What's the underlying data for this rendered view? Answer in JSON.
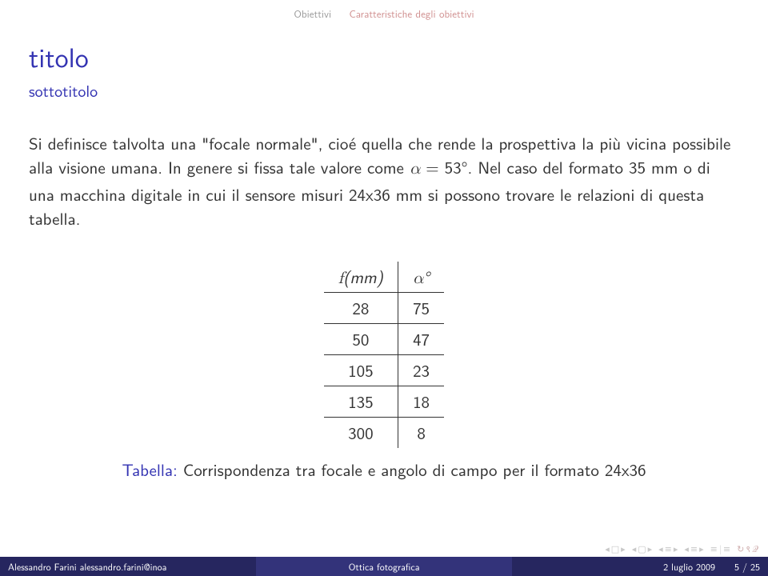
{
  "header": {
    "tab_active": "Obiettivi",
    "tab_inactive": "Caratteristiche degli obiettivi"
  },
  "title": "titolo",
  "subtitle": "sottotitolo",
  "body": "Si definisce talvolta una \"focale normale\", cioè quella che rende la prospettiva la più vicina possibile alla visione umana. In genere si fissa tale valore come α = 53°. Nel caso del formato 35 mm o di una macchina digitale in cui il sensore misuri 24x36 mm si possono trovare le relazioni di questa tabella.",
  "table": {
    "col1_header": "f(mm)",
    "col2_header": "α°",
    "rows": [
      {
        "f": "28",
        "a": "75"
      },
      {
        "f": "50",
        "a": "47"
      },
      {
        "f": "105",
        "a": "23"
      },
      {
        "f": "135",
        "a": "18"
      },
      {
        "f": "300",
        "a": "8"
      }
    ],
    "caption_label": "Tabella:",
    "caption_text": "Corrispondenza tra focale e angolo di campo per il formato 24x36"
  },
  "footer": {
    "author": "Alessandro Farini   alessandro.farini@inoa",
    "center": "Ottica fotografica",
    "date": "2 luglio 2009",
    "page": "5 / 25"
  },
  "colors": {
    "title_blue": "#3333B2",
    "footer_dark": "#26265f",
    "footer_mid": "#33337a",
    "tab_active_gray": "#9a9a9a",
    "tab_inactive_pink": "#d09090"
  }
}
